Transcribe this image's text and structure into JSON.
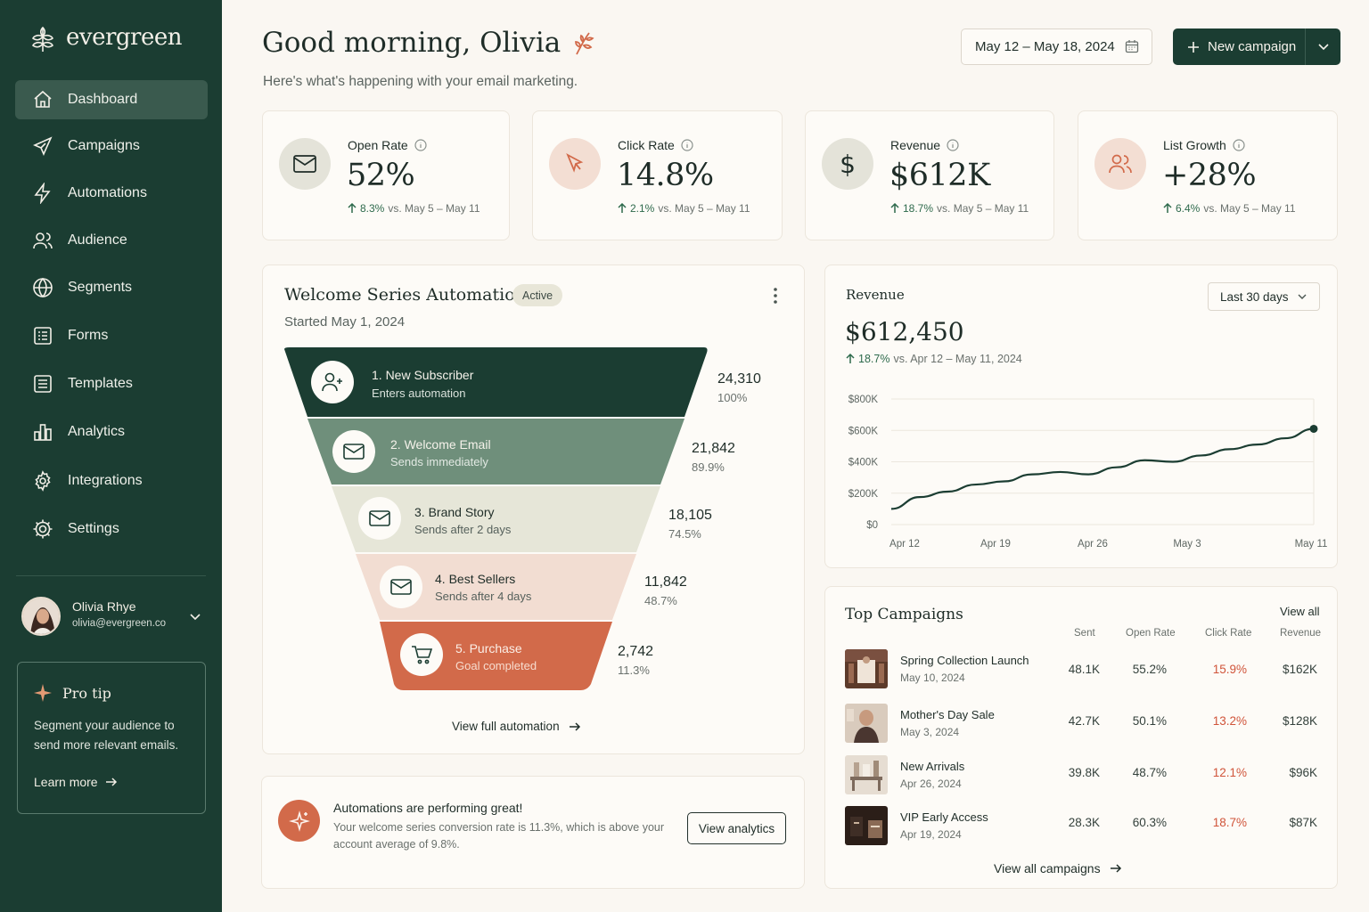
{
  "app": {
    "name": "evergreen"
  },
  "sidebar": {
    "items": [
      {
        "label": "Dashboard",
        "icon": "home-icon",
        "active": true
      },
      {
        "label": "Campaigns",
        "icon": "send-icon"
      },
      {
        "label": "Automations",
        "icon": "lightning-icon"
      },
      {
        "label": "Audience",
        "icon": "users-icon"
      },
      {
        "label": "Segments",
        "icon": "globe-icon"
      },
      {
        "label": "Forms",
        "icon": "form-icon"
      },
      {
        "label": "Templates",
        "icon": "template-icon"
      },
      {
        "label": "Analytics",
        "icon": "bar-chart-icon"
      },
      {
        "label": "Integrations",
        "icon": "gear-icon"
      },
      {
        "label": "Settings",
        "icon": "settings-icon"
      }
    ],
    "user": {
      "name": "Olivia Rhye",
      "email": "olivia@evergreen.co"
    },
    "tip": {
      "title": "Pro tip",
      "body": "Segment your audience to send more relevant emails.",
      "link": "Learn more"
    }
  },
  "header": {
    "greeting": "Good morning, Olivia",
    "subtitle": "Here's what's happening with your email marketing.",
    "date_range": "May 12 – May 18, 2024",
    "new_campaign": "New campaign"
  },
  "stats": [
    {
      "label": "Open Rate",
      "value": "52%",
      "delta": "8.3%",
      "compare": "vs. May 5 – May 11",
      "icon": "mail-icon"
    },
    {
      "label": "Click Rate",
      "value": "14.8%",
      "delta": "2.1%",
      "compare": "vs. May 5 – May 11",
      "icon": "cursor-icon"
    },
    {
      "label": "Revenue",
      "value": "$612K",
      "delta": "18.7%",
      "compare": "vs. May 5 – May 11",
      "icon": "dollar-icon"
    },
    {
      "label": "List Growth",
      "value": "+28%",
      "delta": "6.4%",
      "compare": "vs. May 5 – May 11",
      "icon": "users-icon"
    }
  ],
  "automation": {
    "title": "Welcome Series Automation",
    "status": "Active",
    "started": "Started May 1, 2024",
    "steps": [
      {
        "title": "1. New Subscriber",
        "subtitle": "Enters automation",
        "count": "24,310",
        "pct": "100%",
        "color": "#1b3d32",
        "icon": "user-plus-icon"
      },
      {
        "title": "2. Welcome Email",
        "subtitle": "Sends immediately",
        "count": "21,842",
        "pct": "89.9%",
        "color": "#6f8f7b",
        "icon": "mail-icon"
      },
      {
        "title": "3. Brand Story",
        "subtitle": "Sends after 2 days",
        "count": "18,105",
        "pct": "74.5%",
        "color": "#e6e6d8",
        "icon": "mail-icon"
      },
      {
        "title": "4. Best Sellers",
        "subtitle": "Sends after 4 days",
        "count": "11,842",
        "pct": "48.7%",
        "color": "#f2ddd2",
        "icon": "mail-icon"
      },
      {
        "title": "5. Purchase",
        "subtitle": "Goal completed",
        "count": "2,742",
        "pct": "11.3%",
        "color": "#d26a4a",
        "icon": "cart-icon"
      }
    ],
    "view_full": "View full automation"
  },
  "alert": {
    "title": "Automations are performing great!",
    "body": "Your welcome series conversion rate is 11.3%, which is above your account average of 9.8%.",
    "button": "View analytics"
  },
  "revenue": {
    "title": "Revenue",
    "range_select": "Last 30 days",
    "total": "$612,450",
    "delta": "18.7%",
    "compare": "vs. Apr 12 – May 11, 2024"
  },
  "chart_data": {
    "type": "line",
    "title": "",
    "xlabel": "",
    "ylabel": "",
    "ylim": [
      0,
      800000
    ],
    "yticks": [
      "$800K",
      "$600K",
      "$400K",
      "$200K",
      "$0"
    ],
    "xticks": [
      "Apr 12",
      "Apr 19",
      "Apr 26",
      "May 3",
      "May 11"
    ],
    "x": [
      "Apr 12",
      "Apr 14",
      "Apr 16",
      "Apr 18",
      "Apr 20",
      "Apr 22",
      "Apr 24",
      "Apr 26",
      "Apr 28",
      "Apr 30",
      "May 2",
      "May 4",
      "May 6",
      "May 8",
      "May 9",
      "May 11"
    ],
    "values": [
      100000,
      175000,
      210000,
      255000,
      275000,
      320000,
      335000,
      320000,
      365000,
      410000,
      400000,
      440000,
      480000,
      510000,
      550000,
      610000
    ],
    "grid": true,
    "line_color": "#1b3d32"
  },
  "campaigns": {
    "title": "Top Campaigns",
    "view_all": "View all",
    "columns": [
      "Sent",
      "Open Rate",
      "Click Rate",
      "Revenue"
    ],
    "rows": [
      {
        "name": "Spring Collection Launch",
        "date": "May 10, 2024",
        "sent": "48.1K",
        "open": "55.2%",
        "click": "15.9%",
        "revenue": "$162K"
      },
      {
        "name": "Mother's Day Sale",
        "date": "May 3, 2024",
        "sent": "42.7K",
        "open": "50.1%",
        "click": "13.2%",
        "revenue": "$128K"
      },
      {
        "name": "New Arrivals",
        "date": "Apr 26, 2024",
        "sent": "39.8K",
        "open": "48.7%",
        "click": "12.1%",
        "revenue": "$96K"
      },
      {
        "name": "VIP Early Access",
        "date": "Apr 19, 2024",
        "sent": "28.3K",
        "open": "60.3%",
        "click": "18.7%",
        "revenue": "$87K"
      }
    ],
    "footer": "View all campaigns"
  }
}
